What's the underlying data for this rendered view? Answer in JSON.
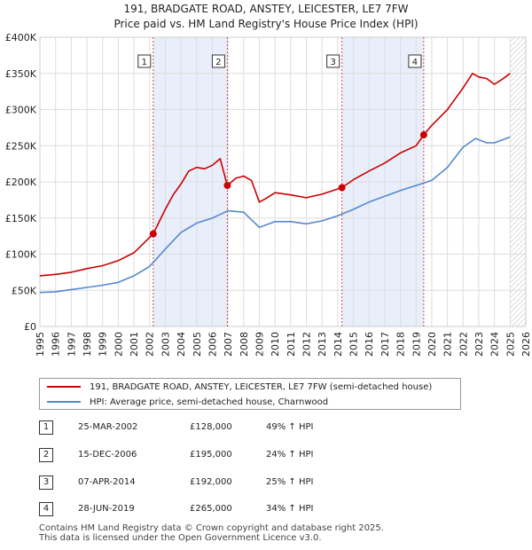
{
  "chart_data": {
    "type": "line",
    "title": "191, BRADGATE ROAD, ANSTEY, LEICESTER, LE7 7FW",
    "subtitle": "Price paid vs. HM Land Registry's House Price Index (HPI)",
    "xlim": [
      1995,
      2026
    ],
    "ylim": [
      0,
      400000
    ],
    "x_ticks": [
      1995,
      1996,
      1997,
      1998,
      1999,
      2000,
      2001,
      2002,
      2003,
      2004,
      2005,
      2006,
      2007,
      2008,
      2009,
      2010,
      2011,
      2012,
      2013,
      2014,
      2015,
      2016,
      2017,
      2018,
      2019,
      2020,
      2021,
      2022,
      2023,
      2024,
      2025,
      2026
    ],
    "y_ticks": [
      {
        "value": 0,
        "label": "£0"
      },
      {
        "value": 50000,
        "label": "£50K"
      },
      {
        "value": 100000,
        "label": "£100K"
      },
      {
        "value": 150000,
        "label": "£150K"
      },
      {
        "value": 200000,
        "label": "£200K"
      },
      {
        "value": 250000,
        "label": "£250K"
      },
      {
        "value": 300000,
        "label": "£300K"
      },
      {
        "value": 350000,
        "label": "£350K"
      },
      {
        "value": 400000,
        "label": "£400K"
      }
    ],
    "grid": true,
    "future_hatch_from": 2025.0,
    "shaded_periods": [
      [
        2002.23,
        2006.96
      ],
      [
        2014.27,
        2019.49
      ]
    ],
    "series": [
      {
        "name": "191, BRADGATE ROAD, ANSTEY, LEICESTER, LE7 7FW (semi-detached house)",
        "color": "#cc0000",
        "points": [
          [
            1995.0,
            70000
          ],
          [
            1996.0,
            72000
          ],
          [
            1997.0,
            75000
          ],
          [
            1998.0,
            80000
          ],
          [
            1999.0,
            84000
          ],
          [
            2000.0,
            91000
          ],
          [
            2001.0,
            102000
          ],
          [
            2002.23,
            128000
          ],
          [
            2003.0,
            162000
          ],
          [
            2003.5,
            182000
          ],
          [
            2004.0,
            197000
          ],
          [
            2004.5,
            215000
          ],
          [
            2005.0,
            220000
          ],
          [
            2005.5,
            218000
          ],
          [
            2006.0,
            223000
          ],
          [
            2006.5,
            232000
          ],
          [
            2006.96,
            195000
          ],
          [
            2007.5,
            205000
          ],
          [
            2008.0,
            208000
          ],
          [
            2008.5,
            202000
          ],
          [
            2009.0,
            172000
          ],
          [
            2009.5,
            178000
          ],
          [
            2010.0,
            185000
          ],
          [
            2011.0,
            182000
          ],
          [
            2012.0,
            178000
          ],
          [
            2013.0,
            183000
          ],
          [
            2014.27,
            192000
          ],
          [
            2015.0,
            203000
          ],
          [
            2016.0,
            215000
          ],
          [
            2017.0,
            226000
          ],
          [
            2018.0,
            240000
          ],
          [
            2019.0,
            250000
          ],
          [
            2019.49,
            265000
          ],
          [
            2020.0,
            278000
          ],
          [
            2021.0,
            300000
          ],
          [
            2022.0,
            330000
          ],
          [
            2022.6,
            350000
          ],
          [
            2023.0,
            345000
          ],
          [
            2023.5,
            343000
          ],
          [
            2024.0,
            335000
          ],
          [
            2024.5,
            342000
          ],
          [
            2025.0,
            350000
          ]
        ]
      },
      {
        "name": "HPI: Average price, semi-detached house, Charnwood",
        "color": "#5588cc",
        "points": [
          [
            1995.0,
            47000
          ],
          [
            1996.0,
            48000
          ],
          [
            1997.0,
            51000
          ],
          [
            1998.0,
            54000
          ],
          [
            1999.0,
            57000
          ],
          [
            2000.0,
            61000
          ],
          [
            2001.0,
            70000
          ],
          [
            2002.0,
            83000
          ],
          [
            2003.0,
            107000
          ],
          [
            2004.0,
            130000
          ],
          [
            2005.0,
            143000
          ],
          [
            2006.0,
            150000
          ],
          [
            2007.0,
            160000
          ],
          [
            2008.0,
            158000
          ],
          [
            2009.0,
            137000
          ],
          [
            2010.0,
            145000
          ],
          [
            2011.0,
            145000
          ],
          [
            2012.0,
            142000
          ],
          [
            2013.0,
            146000
          ],
          [
            2014.0,
            153000
          ],
          [
            2015.0,
            162000
          ],
          [
            2016.0,
            172000
          ],
          [
            2017.0,
            180000
          ],
          [
            2018.0,
            188000
          ],
          [
            2019.0,
            195000
          ],
          [
            2020.0,
            202000
          ],
          [
            2021.0,
            220000
          ],
          [
            2022.0,
            248000
          ],
          [
            2022.8,
            260000
          ],
          [
            2023.5,
            254000
          ],
          [
            2024.0,
            254000
          ],
          [
            2025.0,
            262000
          ]
        ]
      }
    ],
    "sales": [
      {
        "id": "1",
        "x": 2002.23,
        "price": 128000,
        "date": "25-MAR-2002",
        "price_label": "£128,000",
        "hpi": "49% ↑ HPI"
      },
      {
        "id": "2",
        "x": 2006.96,
        "price": 195000,
        "date": "15-DEC-2006",
        "price_label": "£195,000",
        "hpi": "24% ↑ HPI"
      },
      {
        "id": "3",
        "x": 2014.27,
        "price": 192000,
        "date": "07-APR-2014",
        "price_label": "£192,000",
        "hpi": "25% ↑ HPI"
      },
      {
        "id": "4",
        "x": 2019.49,
        "price": 265000,
        "date": "28-JUN-2019",
        "price_label": "£265,000",
        "hpi": "34% ↑ HPI"
      }
    ]
  },
  "legend": {
    "property": "191, BRADGATE ROAD, ANSTEY, LEICESTER, LE7 7FW (semi-detached house)",
    "hpi": "HPI: Average price, semi-detached house, Charnwood"
  },
  "colors": {
    "property": "#cc0000",
    "hpi": "#5588cc",
    "shade": "#e8eefa"
  },
  "footer": {
    "line1": "Contains HM Land Registry data © Crown copyright and database right 2025.",
    "line2": "This data is licensed under the Open Government Licence v3.0."
  }
}
